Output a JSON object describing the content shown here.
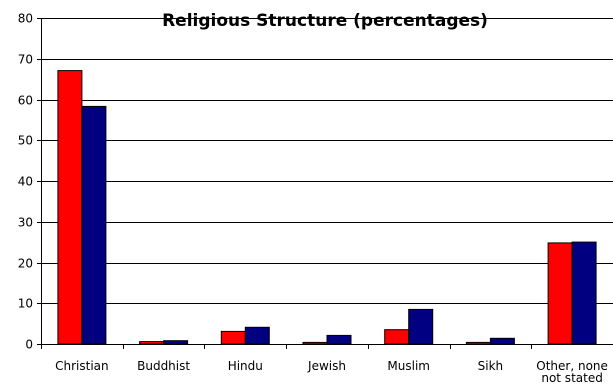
{
  "chart_data": {
    "type": "bar",
    "title": "Religious Structure (percentages)",
    "xlabel": "",
    "ylabel": "",
    "ylim": [
      0,
      80
    ],
    "yticks": [
      0,
      10,
      20,
      30,
      40,
      50,
      60,
      70,
      80
    ],
    "grid": true,
    "legend": "none",
    "categories": [
      "Christian",
      "Buddhist",
      "Hindu",
      "Jewish",
      "Muslim",
      "Sikh",
      "Other, none, not stated"
    ],
    "category_lines": [
      [
        "Christian"
      ],
      [
        "Buddhist"
      ],
      [
        "Hindu"
      ],
      [
        "Jewish"
      ],
      [
        "Muslim"
      ],
      [
        "Sikh"
      ],
      [
        "Other, none",
        "not stated"
      ]
    ],
    "series": [
      {
        "color": "#ff0000",
        "values": [
          67.1,
          0.6,
          3.1,
          0.4,
          3.5,
          0.4,
          24.8
        ]
      },
      {
        "color": "#000080",
        "values": [
          58.3,
          0.8,
          4.1,
          2.1,
          8.5,
          1.4,
          25.0
        ]
      }
    ]
  }
}
